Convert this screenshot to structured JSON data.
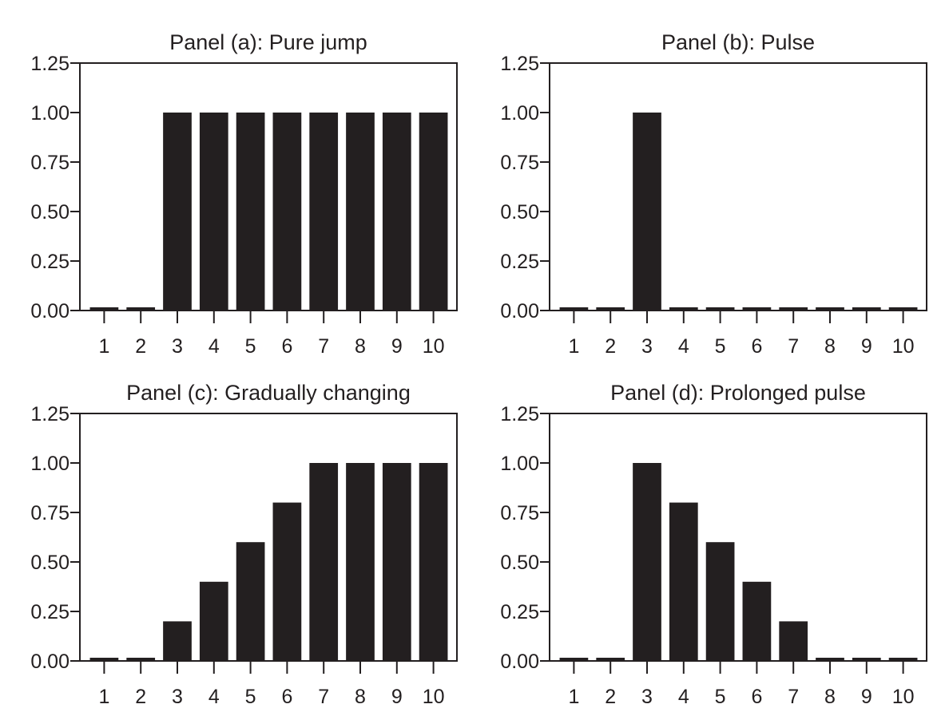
{
  "chart_data": [
    {
      "type": "bar",
      "title": "Panel (a): Pure jump",
      "categories": [
        "1",
        "2",
        "3",
        "4",
        "5",
        "6",
        "7",
        "8",
        "9",
        "10"
      ],
      "values": [
        0,
        0,
        1.0,
        1.0,
        1.0,
        1.0,
        1.0,
        1.0,
        1.0,
        1.0
      ],
      "ylim": [
        0,
        1.25
      ],
      "yticks": [
        "0.00",
        "0.25",
        "0.50",
        "0.75",
        "1.00",
        "1.25"
      ],
      "xlabel": "",
      "ylabel": "",
      "grid": false,
      "bar_color": "#231f20"
    },
    {
      "type": "bar",
      "title": "Panel (b): Pulse",
      "categories": [
        "1",
        "2",
        "3",
        "4",
        "5",
        "6",
        "7",
        "8",
        "9",
        "10"
      ],
      "values": [
        0,
        0,
        1.0,
        0,
        0,
        0,
        0,
        0,
        0,
        0
      ],
      "ylim": [
        0,
        1.25
      ],
      "yticks": [
        "0.00",
        "0.25",
        "0.50",
        "0.75",
        "1.00",
        "1.25"
      ],
      "xlabel": "",
      "ylabel": "",
      "grid": false,
      "bar_color": "#231f20"
    },
    {
      "type": "bar",
      "title": "Panel (c): Gradually changing",
      "categories": [
        "1",
        "2",
        "3",
        "4",
        "5",
        "6",
        "7",
        "8",
        "9",
        "10"
      ],
      "values": [
        0,
        0,
        0.2,
        0.4,
        0.6,
        0.8,
        1.0,
        1.0,
        1.0,
        1.0
      ],
      "ylim": [
        0,
        1.25
      ],
      "yticks": [
        "0.00",
        "0.25",
        "0.50",
        "0.75",
        "1.00",
        "1.25"
      ],
      "xlabel": "",
      "ylabel": "",
      "grid": false,
      "bar_color": "#231f20"
    },
    {
      "type": "bar",
      "title": "Panel (d): Prolonged pulse",
      "categories": [
        "1",
        "2",
        "3",
        "4",
        "5",
        "6",
        "7",
        "8",
        "9",
        "10"
      ],
      "values": [
        0,
        0,
        1.0,
        0.8,
        0.6,
        0.4,
        0.2,
        0,
        0,
        0
      ],
      "ylim": [
        0,
        1.25
      ],
      "yticks": [
        "0.00",
        "0.25",
        "0.50",
        "0.75",
        "1.00",
        "1.25"
      ],
      "xlabel": "",
      "ylabel": "",
      "grid": false,
      "bar_color": "#231f20"
    }
  ]
}
